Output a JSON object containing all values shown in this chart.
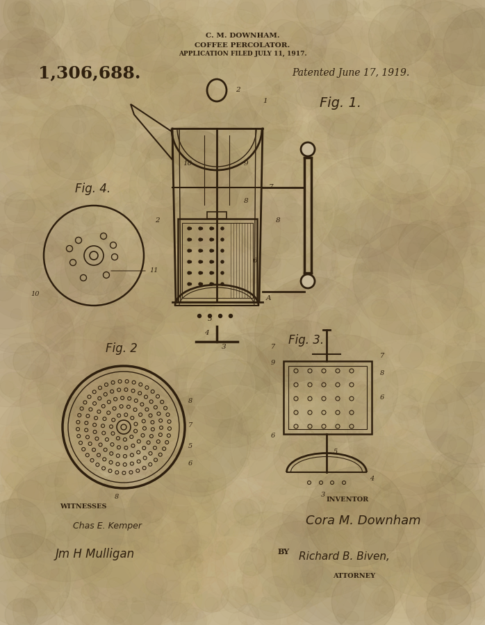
{
  "bg_color": "#c8b99a",
  "ink_color": "#2e1f0e",
  "title_line1": "C. M. DOWNHAM.",
  "title_line2": "COFFEE PERCOLATOR.",
  "title_line3": "APPLICATION FILED JULY 11, 1917.",
  "patent_number": "1,306,688.",
  "patented": "Patented June 17, 1919.",
  "fig1_label": "Fig. 1.",
  "fig2_label": "Fig. 2",
  "fig3_label": "Fig. 3.",
  "fig4_label": "Fig. 4.",
  "witnesses_label": "WITNESSES",
  "inventor_label": "INVENTOR",
  "attorney_label": "ATTORNEY",
  "by_label": "BY",
  "witness1": "Chas E. Kemper",
  "witness2": "Jm H Mulligan",
  "inventor_name": "Cora M. Downham",
  "attorney_sig": "Richard B. Biven,"
}
